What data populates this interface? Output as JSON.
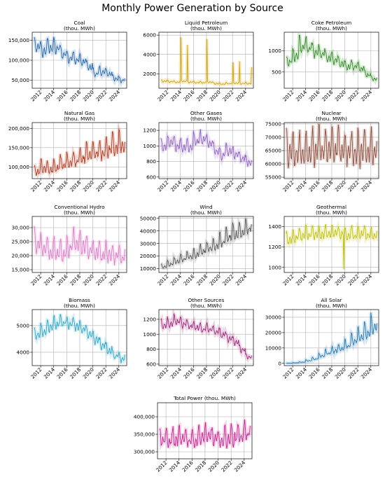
{
  "figure_title": "Monthly Power Generation by Source",
  "chart_data": [
    {
      "type": "line",
      "title_line1": "Coal",
      "title_line2": "(thou. MWh)",
      "color": "#2166ac",
      "ylim": [
        30000,
        170000
      ],
      "yticks": [
        50000,
        100000,
        150000
      ],
      "ytick_labels": [
        "50,000",
        "100,000",
        "150,000"
      ],
      "xticks": [
        2012,
        2014,
        2016,
        2018,
        2020,
        2022,
        2024
      ],
      "xlim": [
        2010.7,
        2025.2
      ],
      "series": {
        "start": 2011,
        "annual_trend": [
          135000,
          125000,
          135000,
          132000,
          118000,
          108000,
          103000,
          98000,
          85000,
          68000,
          72000,
          68000,
          55000,
          52000
        ],
        "seasonal_amp": 0.18
      }
    },
    {
      "type": "line",
      "title_line1": "Liquid Petroleum",
      "title_line2": "(thou. MWh)",
      "color": "#d4a300",
      "ylim": [
        500,
        6300
      ],
      "yticks": [
        2000,
        4000,
        6000
      ],
      "ytick_labels": [
        "2000",
        "4000",
        "6000"
      ],
      "xticks": [
        2012,
        2014,
        2016,
        2018,
        2020,
        2022,
        2024
      ],
      "xlim": [
        2010.7,
        2025.2
      ],
      "series": {
        "start": 2011,
        "annual_trend": [
          1250,
          1200,
          1150,
          1250,
          1150,
          1100,
          1100,
          1150,
          1000,
          950,
          1000,
          1050,
          1000,
          1000
        ],
        "seasonal_amp": 0.12,
        "spikes": [
          [
            2014.08,
            5800
          ],
          [
            2015.08,
            5000
          ],
          [
            2018.08,
            5600
          ],
          [
            2022.05,
            3200
          ],
          [
            2023.08,
            3300
          ],
          [
            2024.95,
            2700
          ]
        ]
      }
    },
    {
      "type": "line",
      "title_line1": "Coke Petroleum",
      "title_line2": "(thou. MWh)",
      "color": "#2e8b20",
      "ylim": [
        120,
        1430
      ],
      "yticks": [
        500,
        1000
      ],
      "ytick_labels": [
        "500",
        "1000"
      ],
      "xticks": [
        2012,
        2014,
        2016,
        2018,
        2020,
        2022,
        2024
      ],
      "xlim": [
        2010.7,
        2025.2
      ],
      "series": {
        "start": 2011,
        "annual_trend": [
          750,
          900,
          1150,
          1100,
          1000,
          950,
          850,
          800,
          700,
          650,
          650,
          600,
          450,
          350
        ],
        "seasonal_amp": 0.2
      }
    },
    {
      "type": "line",
      "title_line1": "Natural Gas",
      "title_line2": "(thou. MWh)",
      "color": "#b33a1e",
      "ylim": [
        70000,
        215000
      ],
      "yticks": [
        100000,
        150000,
        200000
      ],
      "ytick_labels": [
        "100,000",
        "150,000",
        "200,000"
      ],
      "xticks": [
        2012,
        2014,
        2016,
        2018,
        2020,
        2022,
        2024
      ],
      "xlim": [
        2010.7,
        2025.2
      ],
      "series": {
        "start": 2011,
        "annual_trend": [
          90000,
          100000,
          95000,
          100000,
          110000,
          115000,
          118000,
          125000,
          135000,
          138000,
          140000,
          150000,
          155000,
          160000
        ],
        "seasonal_amp": 0.22
      }
    },
    {
      "type": "line",
      "title_line1": "Other Gases",
      "title_line2": "(thou. MWh)",
      "color": "#8f5fc2",
      "ylim": [
        580,
        1300
      ],
      "yticks": [
        600,
        800,
        1000,
        1200
      ],
      "ytick_labels": [
        "600",
        "800",
        "1000",
        "1200"
      ],
      "xticks": [
        2012,
        2014,
        2016,
        2018,
        2020,
        2022,
        2024
      ],
      "xlim": [
        2010.7,
        2025.2
      ],
      "series": {
        "start": 2011,
        "annual_trend": [
          1000,
          1050,
          1020,
          1000,
          1000,
          1080,
          1100,
          1050,
          950,
          900,
          950,
          900,
          850,
          800
        ],
        "seasonal_amp": 0.1
      }
    },
    {
      "type": "line",
      "title_line1": "Nuclear",
      "title_line2": "(thou. MWh)",
      "color": "#8b4a3a",
      "ylim": [
        54500,
        75500
      ],
      "yticks": [
        55000,
        60000,
        65000,
        70000,
        75000
      ],
      "ytick_labels": [
        "55000",
        "60000",
        "65000",
        "70000",
        "75000"
      ],
      "xticks": [
        2012,
        2014,
        2016,
        2018,
        2020,
        2022,
        2024
      ],
      "xlim": [
        2010.7,
        2025.2
      ],
      "series": {
        "start": 2011,
        "annual_trend": [
          65000,
          64500,
          65000,
          65500,
          66000,
          66000,
          66000,
          66500,
          66000,
          65500,
          65000,
          65500,
          65500,
          65500
        ],
        "seasonal_amp": 0.12
      }
    },
    {
      "type": "line",
      "title_line1": "Conventional Hydro",
      "title_line2": "(thou. MWh)",
      "color": "#e07bc8",
      "ylim": [
        14000,
        34000
      ],
      "yticks": [
        15000,
        20000,
        25000,
        30000
      ],
      "ytick_labels": [
        "15,000",
        "20,000",
        "25,000",
        "30,000"
      ],
      "xticks": [
        2012,
        2014,
        2016,
        2018,
        2020,
        2022,
        2024
      ],
      "xlim": [
        2010.7,
        2025.2
      ],
      "series": {
        "start": 2011,
        "annual_trend": [
          25000,
          23000,
          22000,
          22000,
          21000,
          23000,
          25000,
          24000,
          22500,
          21500,
          21000,
          21000,
          20500,
          20000
        ],
        "seasonal_amp": 0.22
      }
    },
    {
      "type": "line",
      "title_line1": "Wind",
      "title_line2": "(thou. MWh)",
      "color": "#555555",
      "ylim": [
        7000,
        51500
      ],
      "yticks": [
        10000,
        20000,
        30000,
        40000,
        50000
      ],
      "ytick_labels": [
        "10000",
        "20000",
        "30000",
        "40000",
        "50000"
      ],
      "xticks": [
        2012,
        2014,
        2016,
        2018,
        2020,
        2022,
        2024
      ],
      "xlim": [
        2010.7,
        2025.2
      ],
      "series": {
        "start": 2011,
        "annual_trend": [
          12000,
          14000,
          16000,
          18000,
          20000,
          22000,
          25000,
          27000,
          29000,
          32000,
          36000,
          38000,
          40000,
          43000
        ],
        "seasonal_amp": 0.2
      }
    },
    {
      "type": "line",
      "title_line1": "Geothermal",
      "title_line2": "(thou. MWh)",
      "color": "#c0c000",
      "ylim": [
        950,
        1500
      ],
      "yticks": [
        1000,
        1200,
        1400
      ],
      "ytick_labels": [
        "1000",
        "1200",
        "1400"
      ],
      "xticks": [
        2012,
        2014,
        2016,
        2018,
        2020,
        2022,
        2024
      ],
      "xlim": [
        2010.7,
        2025.2
      ],
      "series": {
        "start": 2011,
        "annual_trend": [
          1280,
          1300,
          1320,
          1330,
          1330,
          1330,
          1340,
          1350,
          1330,
          1320,
          1330,
          1340,
          1330,
          1320
        ],
        "seasonal_amp": 0.06,
        "spikes": [
          [
            2019.85,
            980
          ]
        ]
      }
    },
    {
      "type": "line",
      "title_line1": "Biomass",
      "title_line2": "(thou. MWh)",
      "color": "#2aa8c8",
      "ylim": [
        3500,
        5600
      ],
      "yticks": [
        4000,
        5000
      ],
      "ytick_labels": [
        "4000",
        "5000"
      ],
      "xticks": [
        2012,
        2014,
        2016,
        2018,
        2020,
        2022,
        2024
      ],
      "xlim": [
        2010.7,
        2025.2
      ],
      "series": {
        "start": 2011,
        "annual_trend": [
          4700,
          4800,
          5000,
          5100,
          5150,
          5100,
          5000,
          4900,
          4700,
          4500,
          4300,
          4100,
          3900,
          3800
        ],
        "seasonal_amp": 0.06
      }
    },
    {
      "type": "line",
      "title_line1": "Other Sources",
      "title_line2": "(thou. MWh)",
      "color": "#a0207a",
      "ylim": [
        580,
        1330
      ],
      "yticks": [
        600,
        800,
        1000,
        1200
      ],
      "ytick_labels": [
        "600",
        "800",
        "1000",
        "1200"
      ],
      "xticks": [
        2012,
        2014,
        2016,
        2018,
        2020,
        2022,
        2024
      ],
      "xlim": [
        2010.7,
        2025.2
      ],
      "series": {
        "start": 2011,
        "annual_trend": [
          1120,
          1150,
          1180,
          1150,
          1120,
          1100,
          1080,
          1080,
          1050,
          1000,
          950,
          900,
          800,
          700
        ],
        "seasonal_amp": 0.07
      }
    },
    {
      "type": "line",
      "title_line1": "All Solar",
      "title_line2": "(thou. MWh)",
      "color": "#1f78b4",
      "ylim": [
        -1500,
        35000
      ],
      "yticks": [
        0,
        10000,
        20000,
        30000
      ],
      "ytick_labels": [
        "0",
        "10000",
        "20000",
        "30000"
      ],
      "xticks": [
        2012,
        2014,
        2016,
        2018,
        2020,
        2022,
        2024
      ],
      "xlim": [
        2010.7,
        2025.2
      ],
      "series": {
        "start": 2011,
        "annual_trend": [
          100,
          300,
          800,
          1800,
          3000,
          5000,
          7000,
          8500,
          10000,
          12000,
          15000,
          18000,
          21000,
          25000
        ],
        "seasonal_amp": 0.3
      }
    },
    {
      "type": "line",
      "title_line1": "Total Power (thou. MWh)",
      "title_line2": "",
      "color": "#cc1f8f",
      "ylim": [
        280000,
        440000
      ],
      "yticks": [
        300000,
        350000,
        400000
      ],
      "ytick_labels": [
        "300,000",
        "350,000",
        "400,000"
      ],
      "xticks": [
        2012,
        2014,
        2016,
        2018,
        2020,
        2022,
        2024
      ],
      "xlim": [
        2010.7,
        2025.2
      ],
      "series": {
        "start": 2011,
        "annual_trend": [
          340000,
          335000,
          338000,
          340000,
          338000,
          336000,
          345000,
          348000,
          340000,
          335000,
          340000,
          345000,
          350000,
          355000
        ],
        "seasonal_amp": 0.1
      }
    }
  ]
}
